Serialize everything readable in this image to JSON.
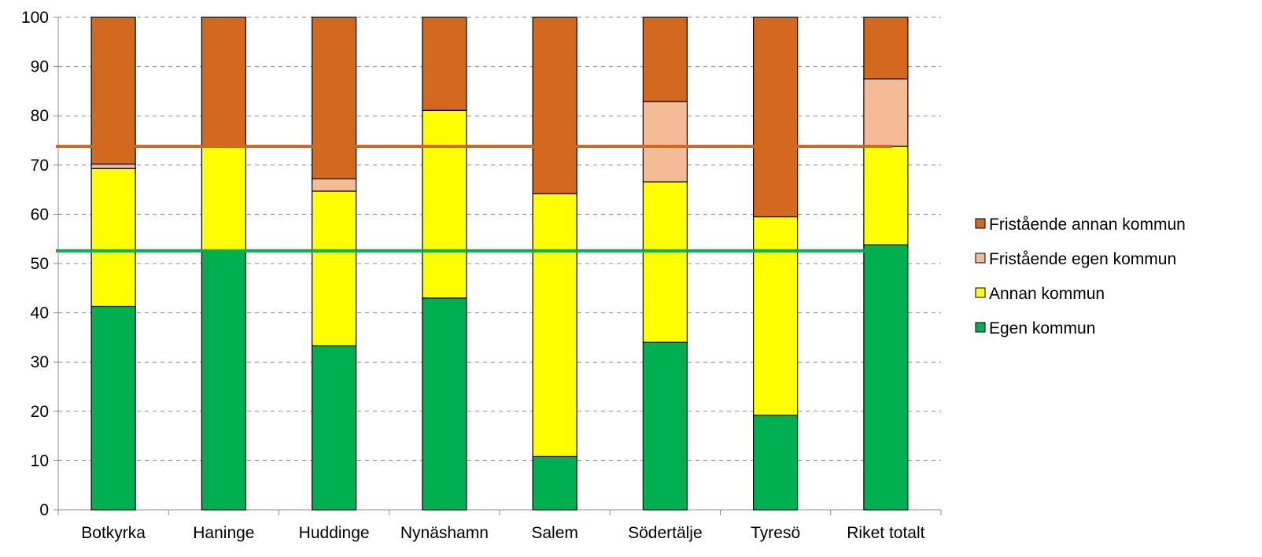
{
  "chart_data": {
    "type": "bar",
    "stacked": true,
    "title": "",
    "xlabel": "",
    "ylabel": "",
    "ylim": [
      0,
      100
    ],
    "yticks": [
      0,
      10,
      20,
      30,
      40,
      50,
      60,
      70,
      80,
      90,
      100
    ],
    "grid": "horizontal dashed",
    "legend_position": "right",
    "categories": [
      "Botkyrka",
      "Haninge",
      "Huddinge",
      "Nynäshamn",
      "Salem",
      "Södertälje",
      "Tyresö",
      "Riket totalt"
    ],
    "series": [
      {
        "name": "Egen kommun",
        "color": "#00b050",
        "values": [
          41.3,
          52.6,
          33.3,
          43.0,
          10.8,
          34.0,
          19.2,
          53.8
        ]
      },
      {
        "name": "Annan kommun",
        "color": "#ffff00",
        "values": [
          28.0,
          21.4,
          31.4,
          38.1,
          53.4,
          32.6,
          40.3,
          20.0
        ]
      },
      {
        "name": "Fristående egen kommun",
        "color": "#f4bc96",
        "values": [
          0.9,
          0.0,
          2.5,
          0.0,
          0.0,
          16.3,
          0.0,
          13.7
        ]
      },
      {
        "name": "Fristående annan kommun",
        "color": "#d2691e",
        "values": [
          29.8,
          26.0,
          32.8,
          18.9,
          35.8,
          17.1,
          40.5,
          12.5
        ]
      }
    ],
    "reference_lines": [
      {
        "value": 73.8,
        "color": "#d2691e"
      },
      {
        "value": 52.6,
        "color": "#00b050"
      }
    ]
  }
}
